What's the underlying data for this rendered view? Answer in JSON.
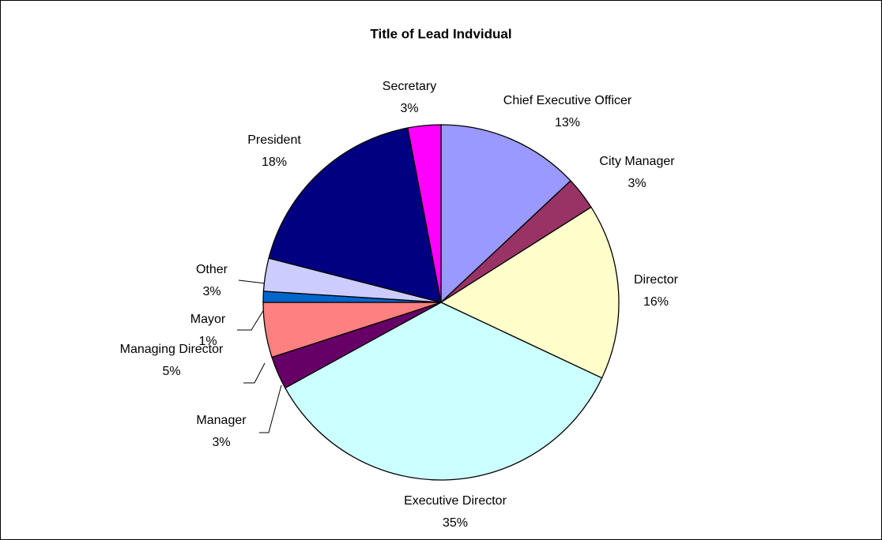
{
  "chart_data": {
    "type": "pie",
    "title": "Title of Lead Indvidual",
    "categories": [
      "Chief Executive Officer",
      "City Manager",
      "Director",
      "Executive Director",
      "Manager",
      "Managing Director",
      "Mayor",
      "Other",
      "President",
      "Secretary"
    ],
    "values": [
      13,
      3,
      16,
      35,
      3,
      5,
      1,
      3,
      18,
      3
    ],
    "value_labels": [
      "13%",
      "3%",
      "16%",
      "35%",
      "3%",
      "5%",
      "1%",
      "3%",
      "18%",
      "3%"
    ],
    "colors": [
      "#9999ff",
      "#993366",
      "#ffffcc",
      "#ccffff",
      "#660066",
      "#ff8080",
      "#0066cc",
      "#ccccff",
      "#000080",
      "#ff00ff"
    ]
  }
}
